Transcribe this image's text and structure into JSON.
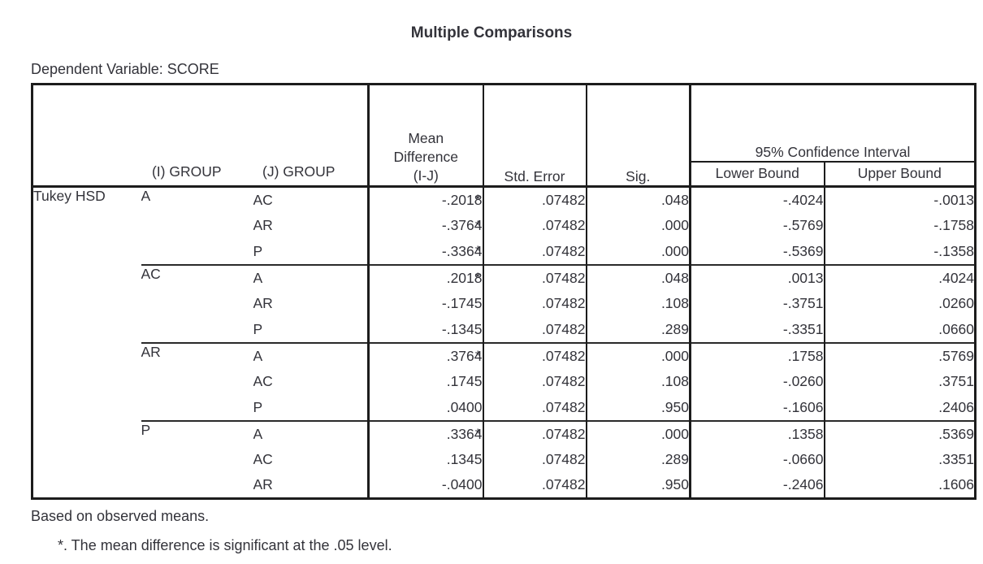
{
  "title": "Multiple Comparisons",
  "dependent_variable_label": "Dependent Variable: SCORE",
  "colors": {
    "background": "#ffffff",
    "text": "#33333a",
    "border": "#1c1c1c"
  },
  "table": {
    "test_label": "Tukey HSD",
    "headers": {
      "i_group": "(I) GROUP",
      "j_group": "(J) GROUP",
      "mean_difference_lines": [
        "Mean",
        "Difference",
        "(I-J)"
      ],
      "std_error": "Std. Error",
      "sig": "Sig.",
      "confidence_interval": "95% Confidence Interval",
      "lower_bound": "Lower Bound",
      "upper_bound": "Upper Bound"
    },
    "groups": [
      {
        "i": "A",
        "rows": [
          {
            "j": "AC",
            "mean_diff": "-.2018*",
            "std_error": ".07482",
            "sig": ".048",
            "lower": "-.4024",
            "upper": "-.0013"
          },
          {
            "j": "AR",
            "mean_diff": "-.3764*",
            "std_error": ".07482",
            "sig": ".000",
            "lower": "-.5769",
            "upper": "-.1758"
          },
          {
            "j": "P",
            "mean_diff": "-.3364*",
            "std_error": ".07482",
            "sig": ".000",
            "lower": "-.5369",
            "upper": "-.1358"
          }
        ]
      },
      {
        "i": "AC",
        "rows": [
          {
            "j": "A",
            "mean_diff": ".2018*",
            "std_error": ".07482",
            "sig": ".048",
            "lower": ".0013",
            "upper": ".4024"
          },
          {
            "j": "AR",
            "mean_diff": "-.1745",
            "std_error": ".07482",
            "sig": ".108",
            "lower": "-.3751",
            "upper": ".0260"
          },
          {
            "j": "P",
            "mean_diff": "-.1345",
            "std_error": ".07482",
            "sig": ".289",
            "lower": "-.3351",
            "upper": ".0660"
          }
        ]
      },
      {
        "i": "AR",
        "rows": [
          {
            "j": "A",
            "mean_diff": ".3764*",
            "std_error": ".07482",
            "sig": ".000",
            "lower": ".1758",
            "upper": ".5769"
          },
          {
            "j": "AC",
            "mean_diff": ".1745",
            "std_error": ".07482",
            "sig": ".108",
            "lower": "-.0260",
            "upper": ".3751"
          },
          {
            "j": "P",
            "mean_diff": ".0400",
            "std_error": ".07482",
            "sig": ".950",
            "lower": "-.1606",
            "upper": ".2406"
          }
        ]
      },
      {
        "i": "P",
        "rows": [
          {
            "j": "A",
            "mean_diff": ".3364*",
            "std_error": ".07482",
            "sig": ".000",
            "lower": ".1358",
            "upper": ".5369"
          },
          {
            "j": "AC",
            "mean_diff": ".1345",
            "std_error": ".07482",
            "sig": ".289",
            "lower": "-.0660",
            "upper": ".3351"
          },
          {
            "j": "AR",
            "mean_diff": "-.0400",
            "std_error": ".07482",
            "sig": ".950",
            "lower": "-.2406",
            "upper": ".1606"
          }
        ]
      }
    ]
  },
  "footnotes": [
    "Based on observed means.",
    "*. The mean difference is significant at the .05 level."
  ]
}
